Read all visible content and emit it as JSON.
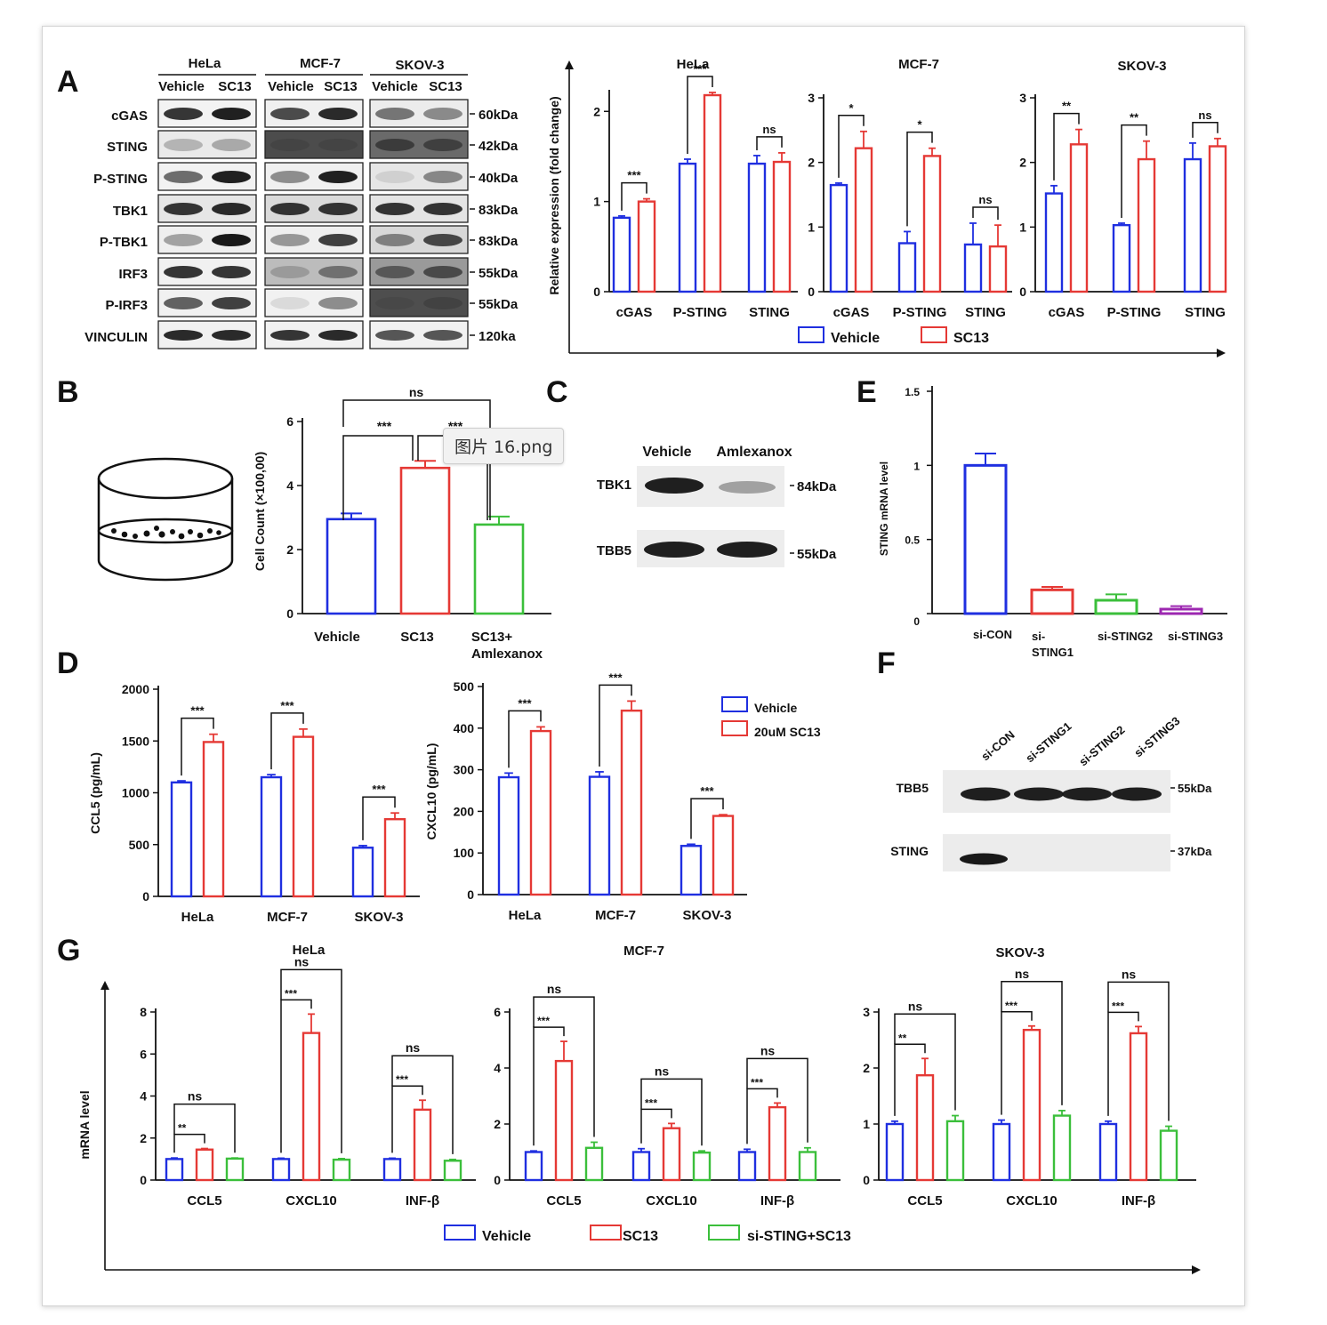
{
  "tooltip": "图片 16.png",
  "colors": {
    "vehicle": "#1f2fe0",
    "sc13": "#e53935",
    "sting": "#3bbf3b",
    "sting3": "#9c27b0"
  },
  "panels": {
    "A": {
      "letter": "A",
      "cell_lines": [
        "HeLa",
        "MCF-7",
        "SKOV-3"
      ],
      "conditions": [
        "Vehicle",
        "SC13"
      ],
      "proteins": [
        "cGAS",
        "STING",
        "P-STING",
        "TBK1",
        "P-TBK1",
        "IRF3",
        "P-IRF3",
        "VINCULIN"
      ],
      "sizes": [
        "60kDa",
        "42kDa",
        "40kDa",
        "83kDa",
        "83kDa",
        "55kDa",
        "55kDa",
        "120ka"
      ],
      "ylabel": "Relative expression (fold change)",
      "legend": [
        "Vehicle",
        "SC13"
      ]
    },
    "B": {
      "letter": "B",
      "ylabel": "Cell Count (×100,00)",
      "categories": [
        "Vehicle",
        "SC13",
        "SC13+",
        "Amlexanox"
      ],
      "sig": [
        "ns",
        "***",
        "***"
      ]
    },
    "C": {
      "letter": "C",
      "conditions": [
        "Vehicle",
        "Amlexanox"
      ],
      "proteins": [
        "TBK1",
        "TBB5"
      ],
      "sizes": [
        "84kDa",
        "55kDa"
      ]
    },
    "D": {
      "letter": "D",
      "ylabel_left": "CCL5 (pg/mL)",
      "ylabel_right": "CXCL10 (pg/mL)",
      "legend": [
        "Vehicle",
        "20uM SC13"
      ]
    },
    "E": {
      "letter": "E",
      "ylabel": "STING mRNA level",
      "categories": [
        "si-CON",
        "si-",
        "STING1",
        "si-STING2",
        "si-STING3"
      ]
    },
    "F": {
      "letter": "F",
      "lanes": [
        "si-CON",
        "si-STING1",
        "si-STING2",
        "si-STING3"
      ],
      "proteins": [
        "TBB5",
        "STING"
      ],
      "sizes": [
        "55kDa",
        "37kDa"
      ]
    },
    "G": {
      "letter": "G",
      "ylabel": "mRNA level",
      "legend": [
        "Vehicle",
        "SC13",
        "si-STING+SC13"
      ]
    }
  },
  "chart_data": [
    {
      "panel": "A-HeLa",
      "type": "bar",
      "title": "HeLa",
      "categories": [
        "cGAS",
        "P-STING",
        "STING"
      ],
      "ylim": [
        0,
        2.2
      ],
      "yticks": [
        0,
        1,
        2
      ],
      "series": [
        {
          "name": "Vehicle",
          "values": [
            0.82,
            1.42,
            1.42
          ],
          "errors": [
            0.02,
            0.05,
            0.09
          ]
        },
        {
          "name": "SC13",
          "values": [
            1.0,
            2.18,
            1.44
          ],
          "errors": [
            0.03,
            0.03,
            0.1
          ]
        }
      ],
      "sig": [
        "***",
        "***",
        "ns"
      ]
    },
    {
      "panel": "A-MCF-7",
      "type": "bar",
      "title": "MCF-7",
      "categories": [
        "cGAS",
        "P-STING",
        "STING"
      ],
      "ylim": [
        0,
        3
      ],
      "yticks": [
        0,
        1,
        2,
        3
      ],
      "series": [
        {
          "name": "Vehicle",
          "values": [
            1.65,
            0.75,
            0.73
          ],
          "errors": [
            0.03,
            0.18,
            0.33
          ]
        },
        {
          "name": "SC13",
          "values": [
            2.22,
            2.1,
            0.7
          ],
          "errors": [
            0.26,
            0.12,
            0.33
          ]
        }
      ],
      "sig": [
        "*",
        "*",
        "ns"
      ]
    },
    {
      "panel": "A-SKOV-3",
      "type": "bar",
      "title": "SKOV-3",
      "categories": [
        "cGAS",
        "P-STING",
        "STING"
      ],
      "ylim": [
        0,
        3
      ],
      "yticks": [
        0,
        1,
        2,
        3
      ],
      "series": [
        {
          "name": "Vehicle",
          "values": [
            1.52,
            1.03,
            2.05
          ],
          "errors": [
            0.12,
            0.03,
            0.25
          ]
        },
        {
          "name": "SC13",
          "values": [
            2.28,
            2.05,
            2.25
          ],
          "errors": [
            0.23,
            0.28,
            0.12
          ]
        }
      ],
      "sig": [
        "**",
        "**",
        "ns"
      ]
    },
    {
      "panel": "B",
      "type": "bar",
      "categories": [
        "Vehicle",
        "SC13",
        "SC13+Amlexanox"
      ],
      "ylim": [
        0,
        6
      ],
      "yticks": [
        0,
        2,
        4,
        6
      ],
      "ylabel": "Cell Count (×100,00)",
      "series": [
        {
          "values": [
            2.95,
            4.55,
            2.78
          ],
          "errors": [
            0.18,
            0.22,
            0.25
          ]
        }
      ]
    },
    {
      "panel": "D-CCL5",
      "type": "bar",
      "categories": [
        "HeLa",
        "MCF-7",
        "SKOV-3"
      ],
      "ylim": [
        0,
        2000
      ],
      "yticks": [
        0,
        500,
        1000,
        1500,
        2000
      ],
      "ylabel": "CCL5 (pg/mL)",
      "series": [
        {
          "name": "Vehicle",
          "values": [
            1100,
            1150,
            470
          ],
          "errors": [
            15,
            25,
            20
          ]
        },
        {
          "name": "20uM SC13",
          "values": [
            1490,
            1540,
            745
          ],
          "errors": [
            75,
            75,
            60
          ]
        }
      ],
      "sig": [
        "***",
        "***",
        "***"
      ]
    },
    {
      "panel": "D-CXCL10",
      "type": "bar",
      "categories": [
        "HeLa",
        "MCF-7",
        "SKOV-3"
      ],
      "ylim": [
        0,
        500
      ],
      "yticks": [
        0,
        100,
        200,
        300,
        400,
        500
      ],
      "ylabel": "CXCL10 (pg/mL)",
      "series": [
        {
          "name": "Vehicle",
          "values": [
            282,
            283,
            117
          ],
          "errors": [
            10,
            12,
            4
          ]
        },
        {
          "name": "20uM SC13",
          "values": [
            393,
            442,
            189
          ],
          "errors": [
            10,
            23,
            3
          ]
        }
      ],
      "sig": [
        "***",
        "***",
        "***"
      ]
    },
    {
      "panel": "E",
      "type": "bar",
      "categories": [
        "si-CON",
        "si-STING1",
        "si-STING2",
        "si-STING3"
      ],
      "ylim": [
        0,
        1.5
      ],
      "yticks": [
        0,
        0.5,
        1,
        1.5
      ],
      "ylabel": "STING mRNA level",
      "series": [
        {
          "values": [
            1.0,
            0.16,
            0.09,
            0.03
          ],
          "errors": [
            0.08,
            0.02,
            0.04,
            0.02
          ]
        }
      ]
    },
    {
      "panel": "G-HeLa",
      "type": "bar",
      "title": "HeLa",
      "categories": [
        "CCL5",
        "CXCL10",
        "INF-β"
      ],
      "ylim": [
        0,
        8
      ],
      "yticks": [
        0,
        2,
        4,
        6,
        8
      ],
      "series": [
        {
          "name": "Vehicle",
          "values": [
            1.0,
            1.0,
            1.0
          ],
          "errors": [
            0.05,
            0.04,
            0.04
          ]
        },
        {
          "name": "SC13",
          "values": [
            1.45,
            7.0,
            3.35
          ],
          "errors": [
            0.05,
            0.9,
            0.45
          ]
        },
        {
          "name": "si-STING+SC13",
          "values": [
            1.02,
            0.97,
            0.92
          ],
          "errors": [
            0.03,
            0.05,
            0.06
          ]
        }
      ],
      "sig_near": [
        "**",
        "***",
        "***"
      ],
      "sig_far": [
        "ns",
        "ns",
        "ns"
      ]
    },
    {
      "panel": "G-MCF-7",
      "type": "bar",
      "title": "MCF-7",
      "categories": [
        "CCL5",
        "CXCL10",
        "INF-β"
      ],
      "ylim": [
        0,
        6
      ],
      "yticks": [
        0,
        2,
        4,
        6
      ],
      "series": [
        {
          "name": "Vehicle",
          "values": [
            1.0,
            1.0,
            1.0
          ],
          "errors": [
            0.04,
            0.12,
            0.1
          ]
        },
        {
          "name": "SC13",
          "values": [
            4.25,
            1.85,
            2.6
          ],
          "errors": [
            0.7,
            0.17,
            0.15
          ]
        },
        {
          "name": "si-STING+SC13",
          "values": [
            1.15,
            0.98,
            1.0
          ],
          "errors": [
            0.2,
            0.06,
            0.15
          ]
        }
      ],
      "sig_near": [
        "***",
        "***",
        "***"
      ],
      "sig_far": [
        "ns",
        "ns",
        "ns"
      ]
    },
    {
      "panel": "G-SKOV-3",
      "type": "bar",
      "title": "SKOV-3",
      "categories": [
        "CCL5",
        "CXCL10",
        "INF-β"
      ],
      "ylim": [
        0,
        3
      ],
      "yticks": [
        0,
        1,
        2,
        3
      ],
      "series": [
        {
          "name": "Vehicle",
          "values": [
            1.0,
            1.0,
            1.0
          ],
          "errors": [
            0.05,
            0.07,
            0.05
          ]
        },
        {
          "name": "SC13",
          "values": [
            1.87,
            2.68,
            2.62
          ],
          "errors": [
            0.3,
            0.07,
            0.12
          ]
        },
        {
          "name": "si-STING+SC13",
          "values": [
            1.05,
            1.15,
            0.88
          ],
          "errors": [
            0.1,
            0.09,
            0.08
          ]
        }
      ],
      "sig_near": [
        "**",
        "***",
        "***"
      ],
      "sig_far": [
        "ns",
        "ns",
        "ns"
      ]
    }
  ]
}
